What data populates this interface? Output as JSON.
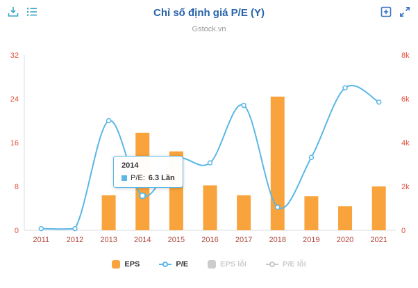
{
  "header": {
    "title": "Chỉ số định giá P/E (Y)",
    "subtitle": "Gstock.vn"
  },
  "toolbar": {
    "icons": [
      "download-icon",
      "series-list-icon",
      "add-chart-icon",
      "fullscreen-icon"
    ]
  },
  "colors": {
    "title": "#2663A9",
    "subtitle": "#999999",
    "toolbar_left_icons": "#39A7CA",
    "toolbar_right_icons": "#3D74C6",
    "axis_line": "#D9DDE2"
  },
  "tooltip": {
    "title": "2014",
    "series": "P/E",
    "label": "P/E:",
    "value": "6.3 Lần",
    "color": "#5BB7E5"
  },
  "chart_data": {
    "type": "bar",
    "subtype": "combo-bar-spline",
    "title": "Chỉ số định giá P/E (Y)",
    "subtitle": "Gstock.vn",
    "categories": [
      "2011",
      "2012",
      "2013",
      "2014",
      "2015",
      "2016",
      "2017",
      "2018",
      "2019",
      "2020",
      "2021"
    ],
    "series": [
      {
        "name": "EPS",
        "type": "bar",
        "axis": "right",
        "color": "#F9A33C",
        "values": [
          0,
          0,
          1600,
          4450,
          3600,
          2050,
          1600,
          6100,
          1550,
          1100,
          2000
        ]
      },
      {
        "name": "P/E",
        "type": "spline",
        "axis": "left",
        "color": "#5BB7E5",
        "values": [
          0.3,
          0.3,
          20,
          6.3,
          13,
          12.3,
          22.8,
          4.2,
          13.3,
          26,
          23.4
        ]
      }
    ],
    "left_axis": {
      "min": 0,
      "max": 32,
      "ticks": [
        "0",
        "8",
        "16",
        "24",
        "32"
      ],
      "color": "#E4503F"
    },
    "right_axis": {
      "min": 0,
      "max": 8000,
      "ticks": [
        "0",
        "2k",
        "4k",
        "6k",
        "8k"
      ],
      "color": "#E4503F"
    },
    "x_axis": {
      "color": "#AF473C"
    },
    "grid": false,
    "legend_position": "bottom",
    "legend": [
      {
        "key": "eps",
        "label": "EPS",
        "marker": "square",
        "color": "#F9A33C",
        "enabled": true
      },
      {
        "key": "pe",
        "label": "P/E",
        "marker": "line-circle",
        "color": "#5BB7E5",
        "enabled": true
      },
      {
        "key": "eps-loi",
        "label": "EPS lỗi",
        "marker": "square",
        "color": "#CCCCCC",
        "enabled": false
      },
      {
        "key": "pe-loi",
        "label": "P/E lỗi",
        "marker": "line-circle",
        "color": "#C6C6C6",
        "enabled": false
      }
    ]
  }
}
